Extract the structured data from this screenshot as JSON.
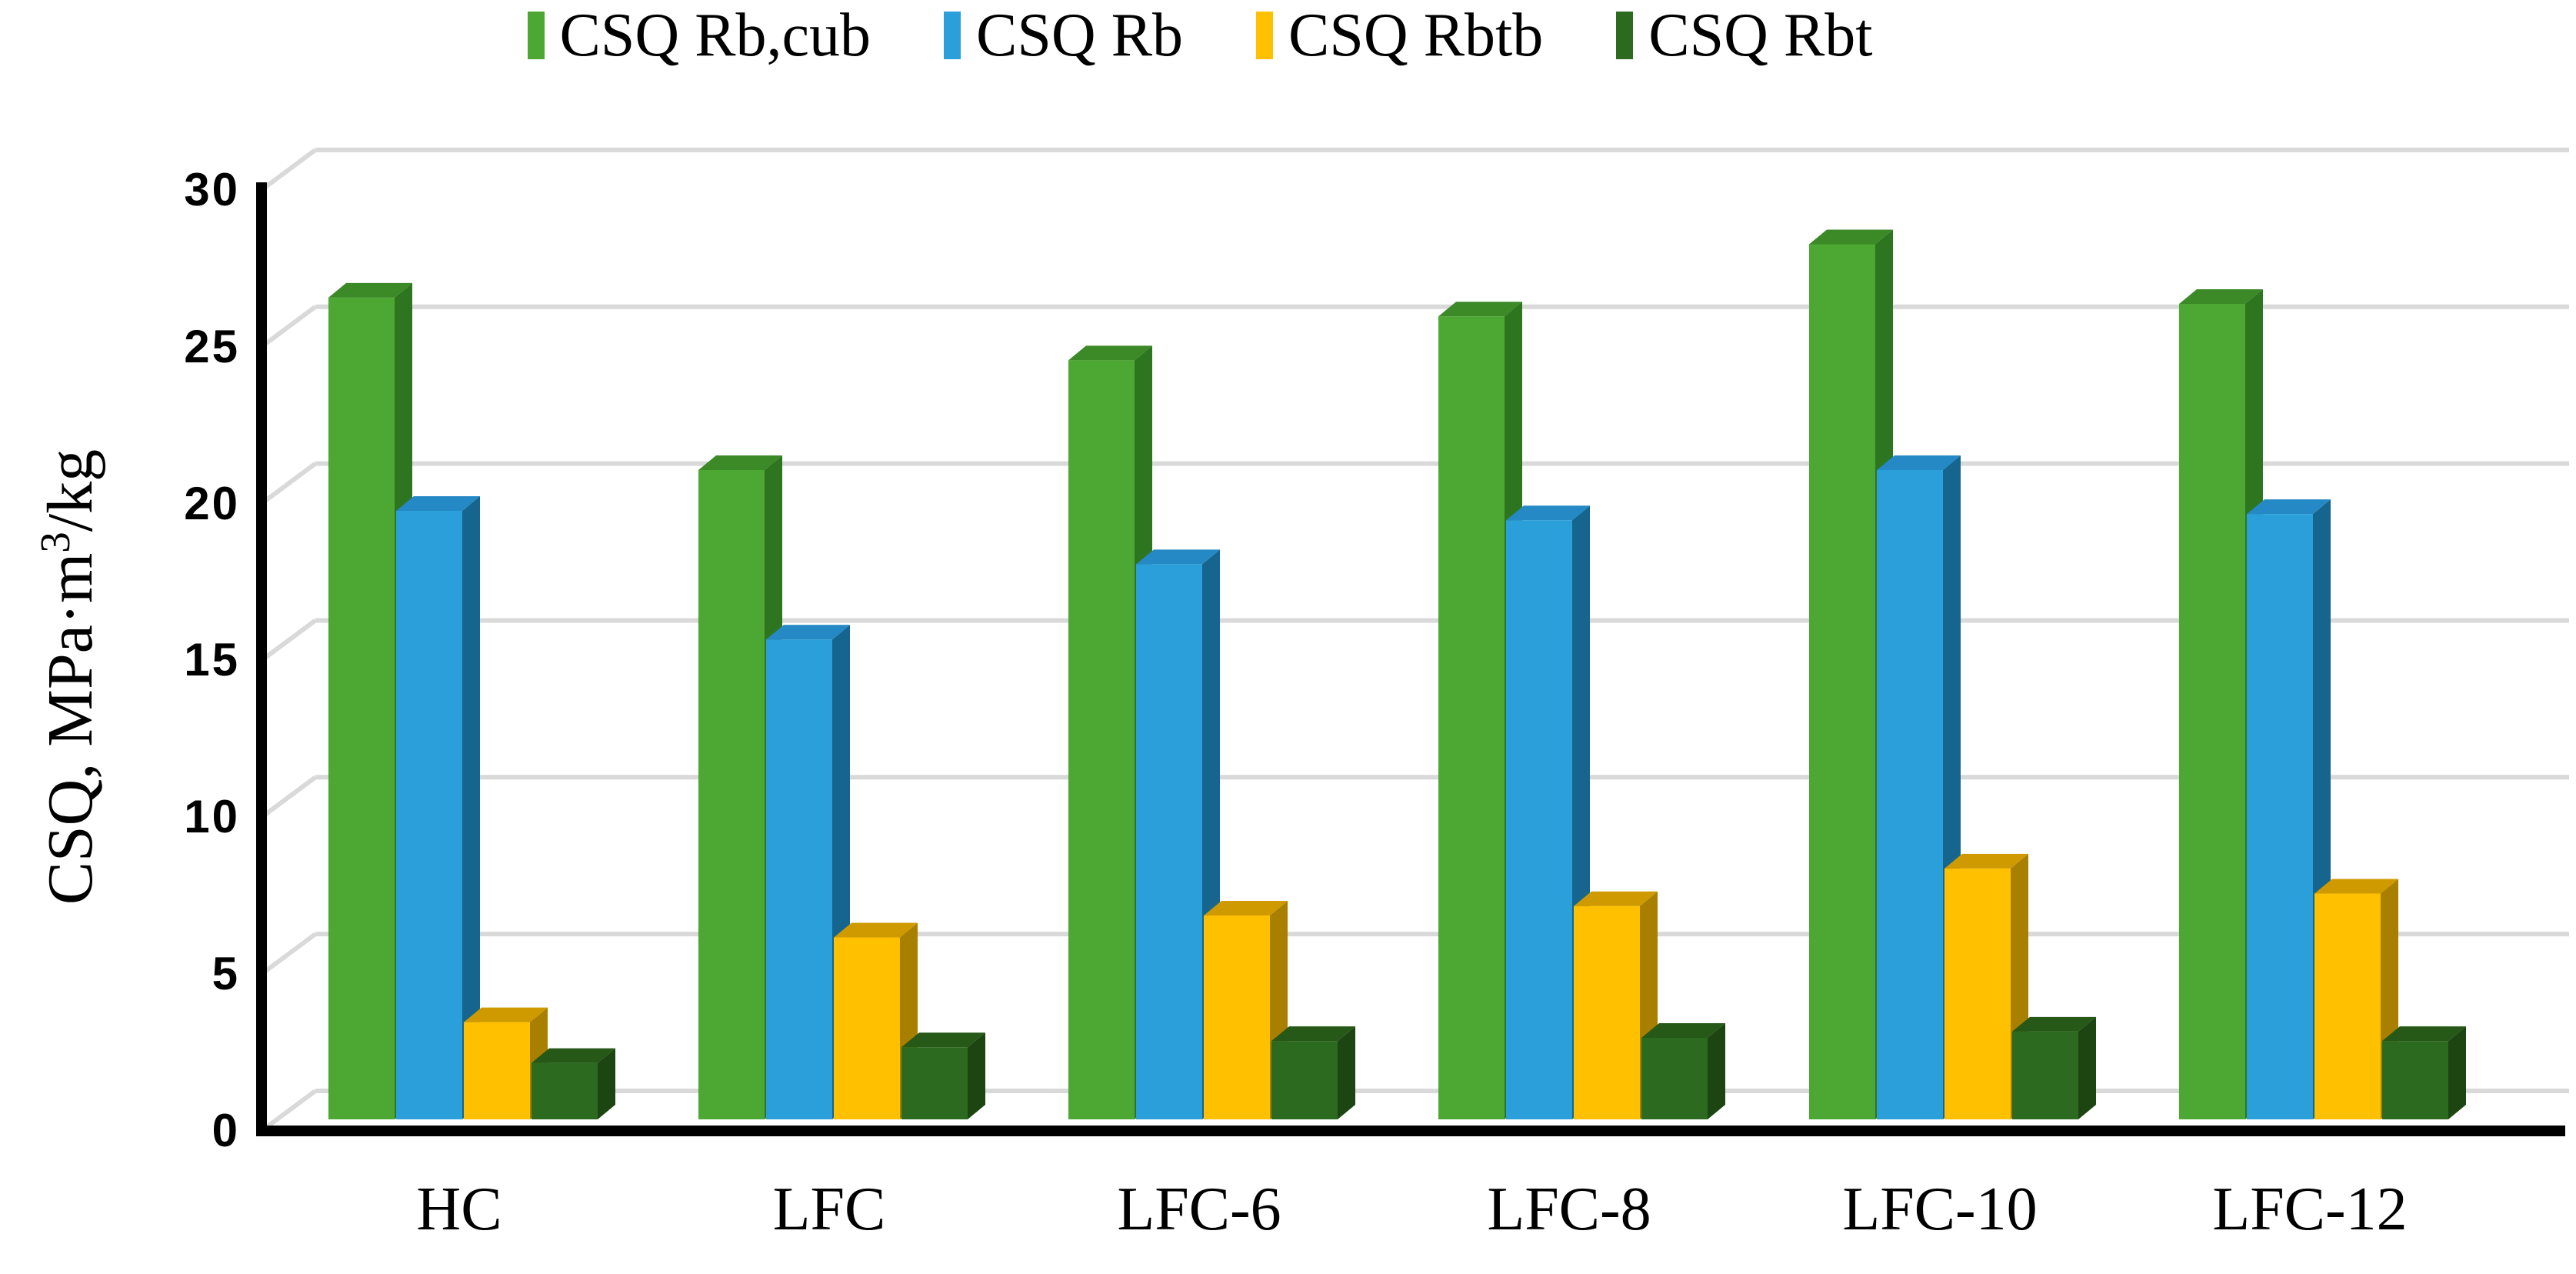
{
  "legend": {
    "items": [
      {
        "label": "CSQ Rb,cub",
        "color": "#4CA832"
      },
      {
        "label": "CSQ Rb",
        "color": "#2B9FD9"
      },
      {
        "label": "CSQ Rbtb",
        "color": "#FFC000"
      },
      {
        "label": "CSQ Rbt",
        "color": "#2C6A1F"
      }
    ]
  },
  "y_axis": {
    "title_prefix": "CSQ, MPa·m",
    "title_sup": "3",
    "title_suffix": "/kg",
    "ticks": [
      "0",
      "5",
      "10",
      "15",
      "20",
      "25",
      "30"
    ],
    "min": 0,
    "max": 30,
    "step": 5
  },
  "chart_data": {
    "type": "bar",
    "subtype": "3d-clustered-column",
    "title": "",
    "xlabel": "",
    "ylabel": "CSQ, MPa·m³/kg",
    "ylim": [
      0,
      30
    ],
    "grid": true,
    "legend_position": "top",
    "categories": [
      "HC",
      "LFC",
      "LFC-6",
      "LFC-8",
      "LFC-10",
      "LFC-12"
    ],
    "series": [
      {
        "name": "CSQ Rb,cub",
        "color": "#4CA832",
        "top_color": "#3C8927",
        "side_color": "#2E7520",
        "values": [
          26.2,
          20.7,
          24.2,
          25.6,
          27.9,
          26.0
        ]
      },
      {
        "name": "CSQ Rb",
        "color": "#2B9FD9",
        "top_color": "#2489C4",
        "side_color": "#15658F",
        "values": [
          19.4,
          15.3,
          17.7,
          19.1,
          20.7,
          19.3
        ]
      },
      {
        "name": "CSQ Rbtb",
        "color": "#FFC000",
        "top_color": "#CE9A00",
        "side_color": "#A97F00",
        "values": [
          3.1,
          5.8,
          6.5,
          6.8,
          8.0,
          7.2
        ]
      },
      {
        "name": "CSQ Rbt",
        "color": "#2C6A1F",
        "top_color": "#265818",
        "side_color": "#1C4511",
        "values": [
          1.8,
          2.3,
          2.5,
          2.6,
          2.8,
          2.5
        ]
      }
    ],
    "gridline_color": "#D9D9D9",
    "axis_color": "#000000"
  }
}
